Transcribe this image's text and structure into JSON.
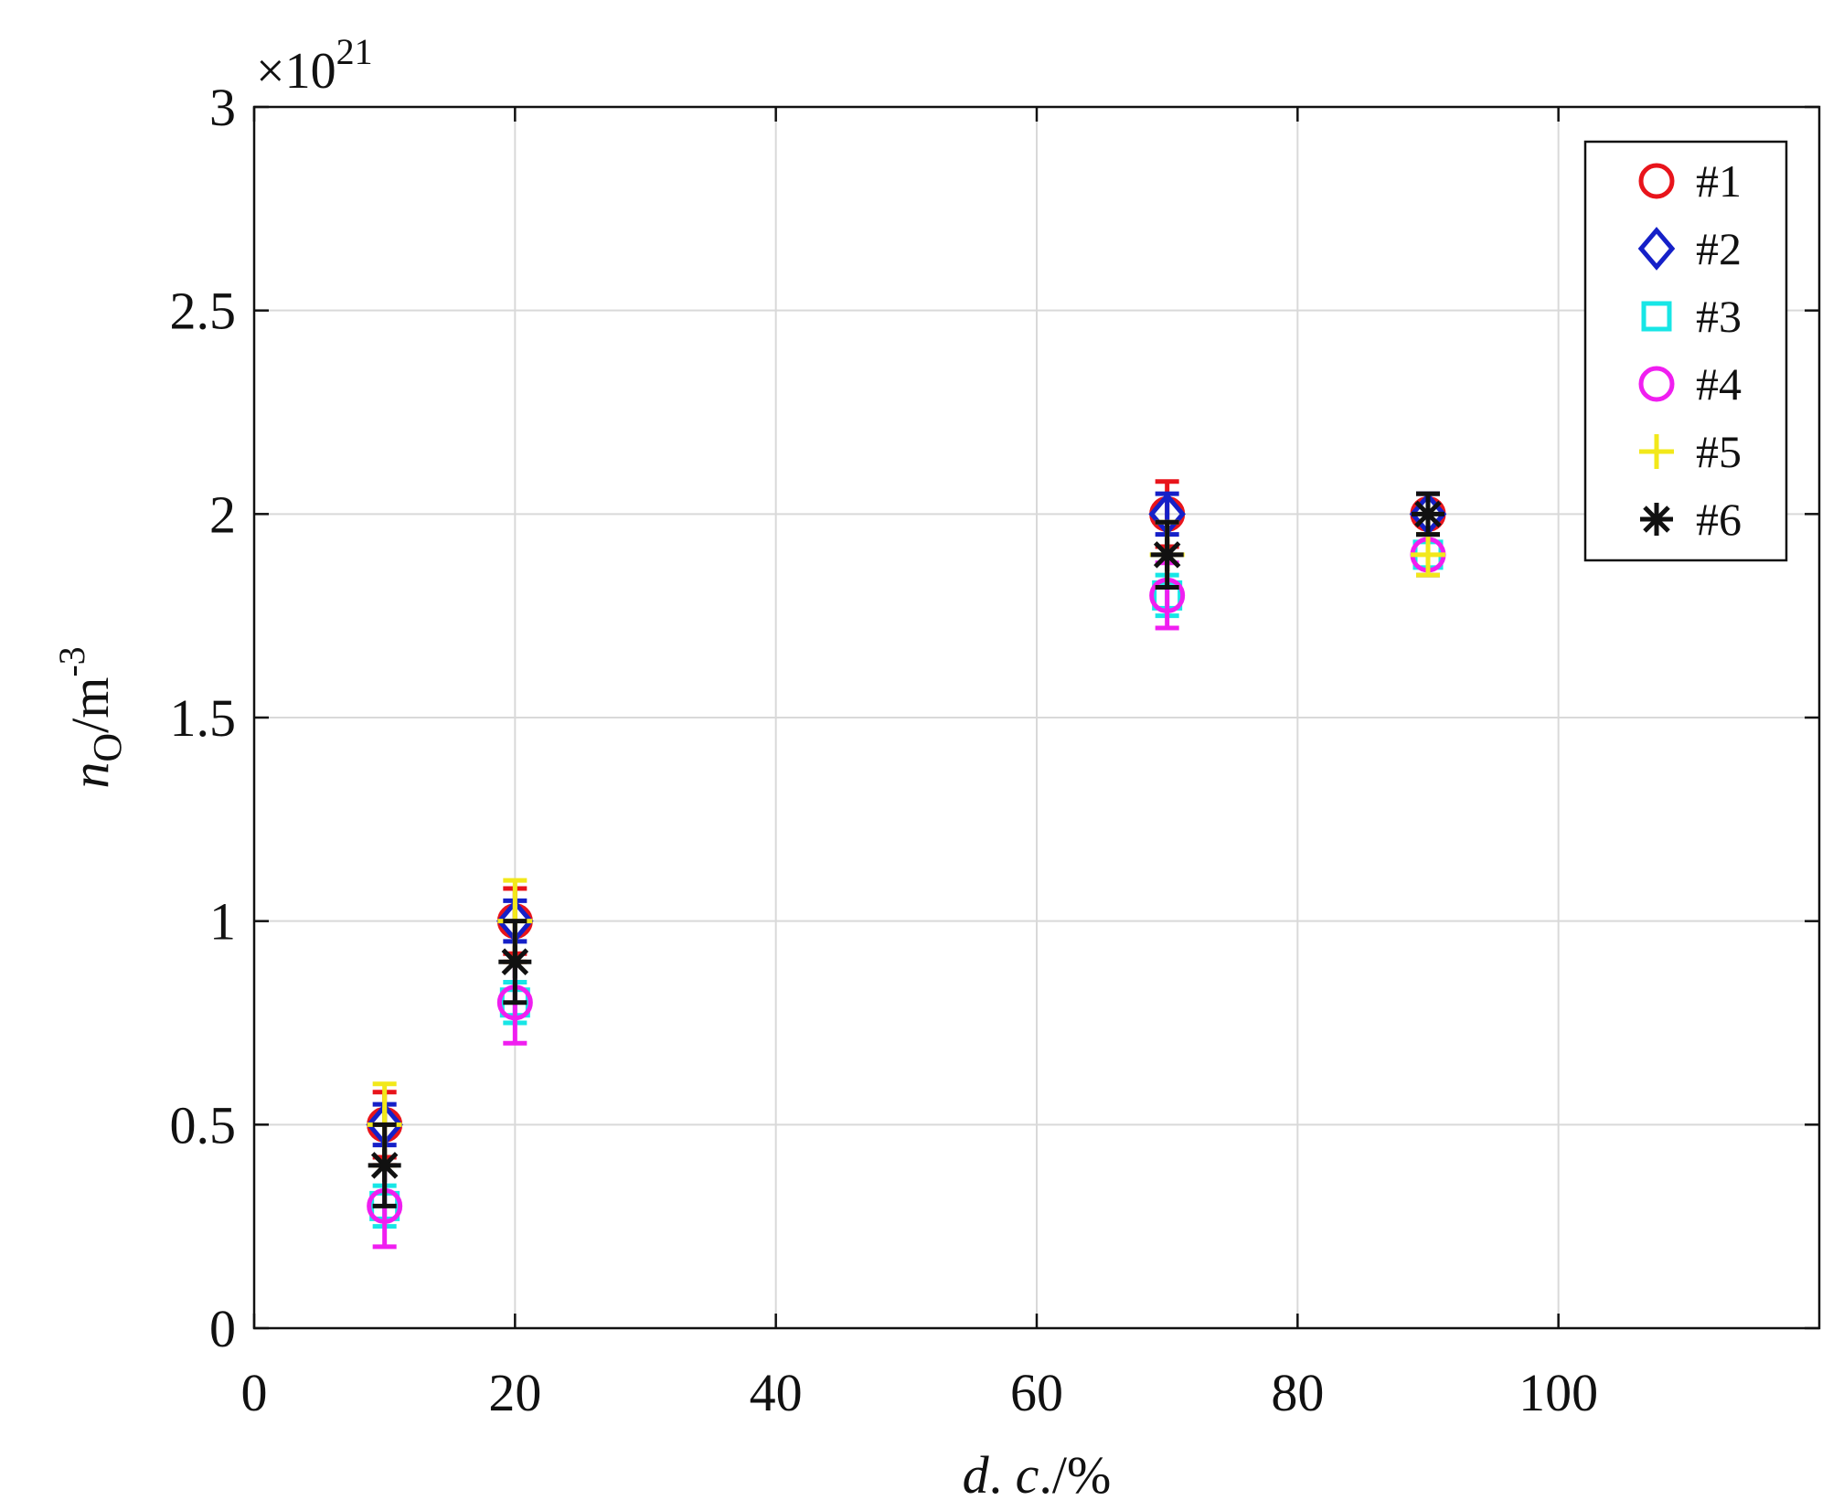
{
  "chart_data": {
    "type": "scatter",
    "title": "",
    "xlabel": "d. c./%",
    "xlabel_parts": {
      "d": "d",
      "sep": ". ",
      "c": "c",
      "unit": "./%"
    },
    "ylabel_parts": {
      "n": "n",
      "sub": "O",
      "unit": "/m",
      "sup": "-3"
    },
    "y_exponent": {
      "times": "×10",
      "power": "21"
    },
    "xlim": [
      0,
      120
    ],
    "ylim": [
      0,
      3
    ],
    "xticks": [
      0,
      20,
      40,
      60,
      80,
      100
    ],
    "xtick_labels": [
      "0",
      "20",
      "40",
      "60",
      "80",
      "100"
    ],
    "yticks": [
      0,
      0.5,
      1,
      1.5,
      2,
      2.5,
      3
    ],
    "ytick_labels": [
      "0",
      "0.5",
      "1",
      "1.5",
      "2",
      "2.5",
      "3"
    ],
    "grid": true,
    "legend_position": "top-right",
    "series": [
      {
        "name": "#1",
        "marker": "circle",
        "color": "#e8141b",
        "x": [
          10,
          20,
          70,
          90
        ],
        "y": [
          0.5,
          1.0,
          2.0,
          2.0
        ],
        "err": [
          0.08,
          0.08,
          0.08,
          0.05
        ]
      },
      {
        "name": "#2",
        "marker": "diamond",
        "color": "#1520c8",
        "x": [
          10,
          20,
          70,
          90
        ],
        "y": [
          0.5,
          1.0,
          2.0,
          2.0
        ],
        "err": [
          0.05,
          0.05,
          0.05,
          0.05
        ]
      },
      {
        "name": "#3",
        "marker": "square",
        "color": "#17e6e6",
        "x": [
          10,
          20,
          70,
          90
        ],
        "y": [
          0.3,
          0.8,
          1.8,
          1.9
        ],
        "err": [
          0.05,
          0.05,
          0.05,
          0.05
        ]
      },
      {
        "name": "#4",
        "marker": "circle",
        "color": "#f01ef0",
        "x": [
          10,
          20,
          70,
          90
        ],
        "y": [
          0.3,
          0.8,
          1.8,
          1.9
        ],
        "err": [
          0.1,
          0.1,
          0.08,
          0.05
        ]
      },
      {
        "name": "#5",
        "marker": "plus",
        "color": "#f2e81a",
        "x": [
          10,
          20,
          70,
          90
        ],
        "y": [
          0.5,
          1.0,
          1.9,
          1.9
        ],
        "err": [
          0.1,
          0.1,
          0.08,
          0.05
        ]
      },
      {
        "name": "#6",
        "marker": "asterisk",
        "color": "#111111",
        "x": [
          10,
          20,
          70,
          90
        ],
        "y": [
          0.4,
          0.9,
          1.9,
          2.0
        ],
        "err": [
          0.1,
          0.1,
          0.08,
          0.05
        ]
      }
    ]
  }
}
